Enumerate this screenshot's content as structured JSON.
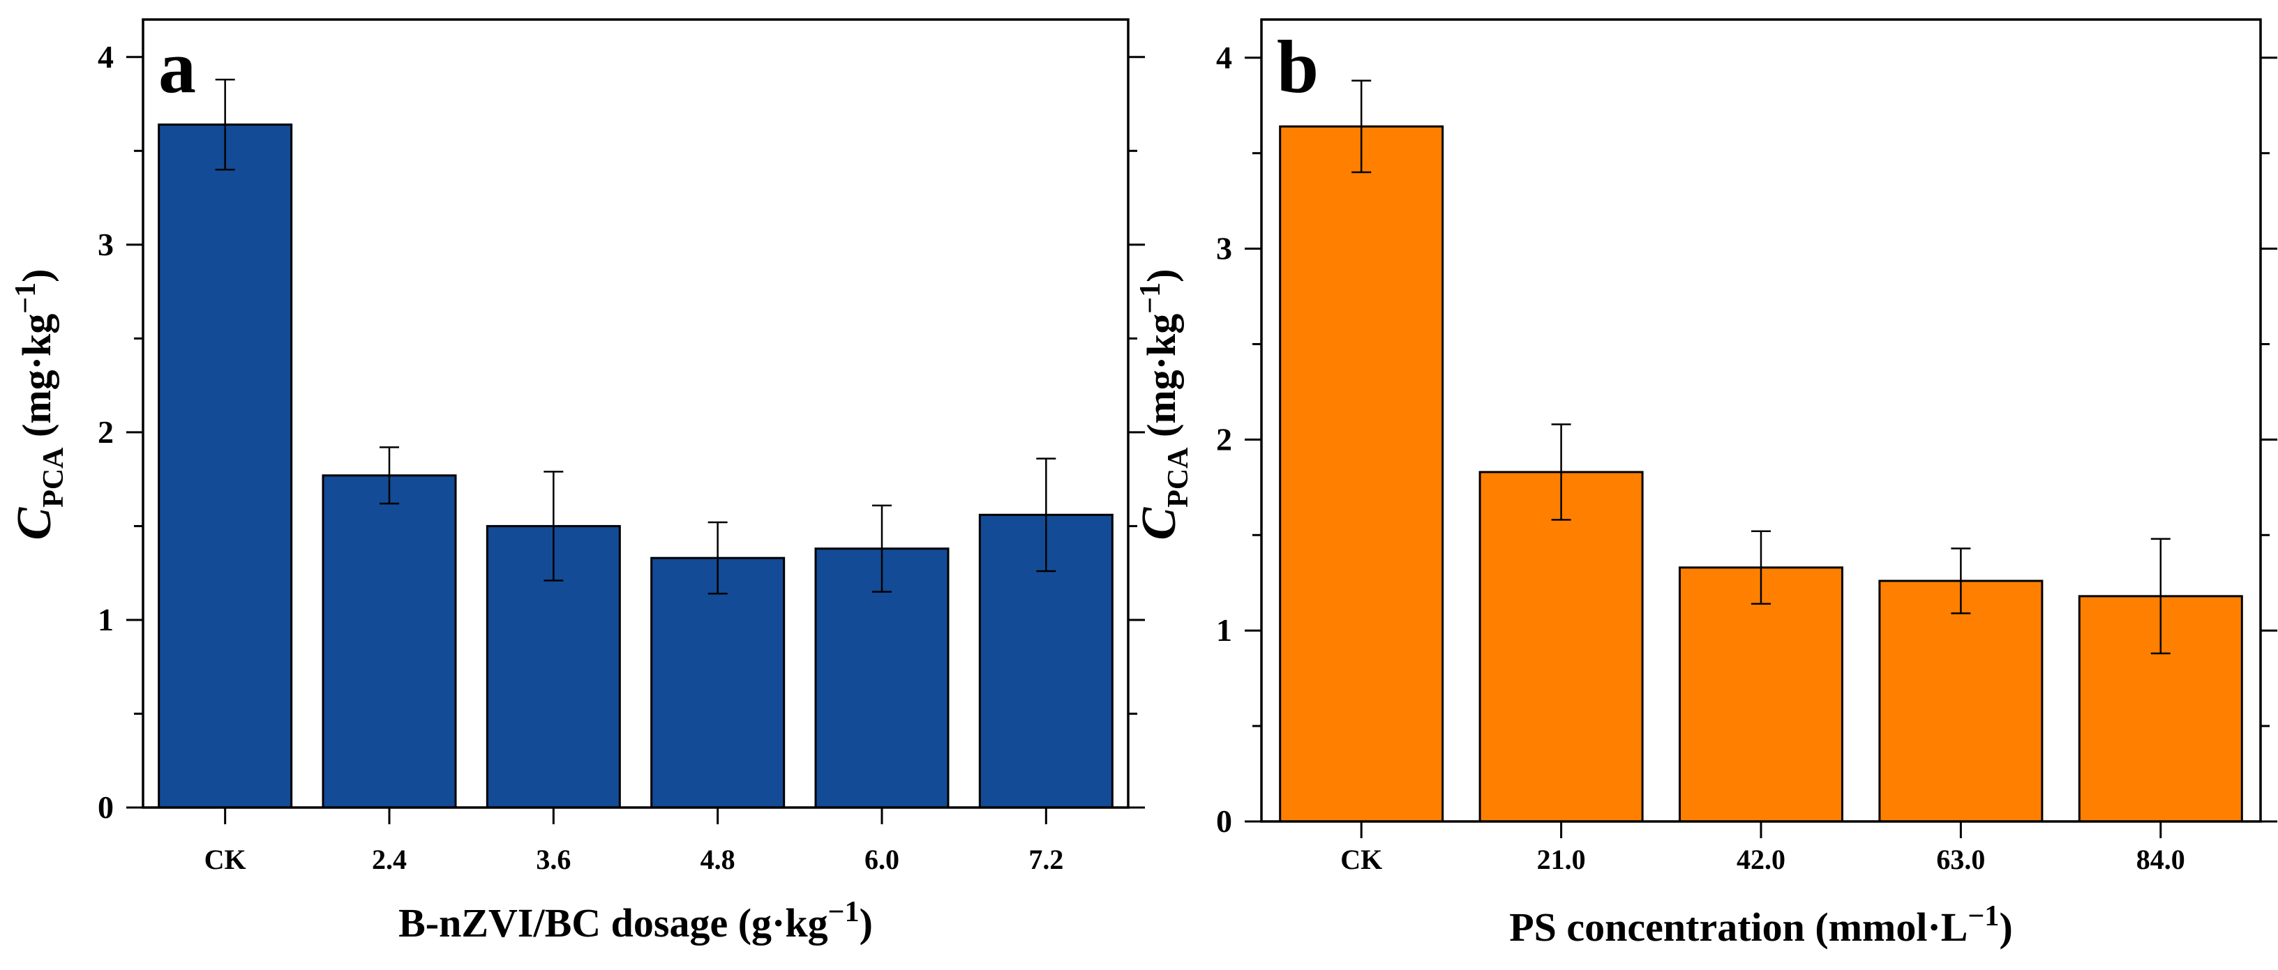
{
  "chart_data": [
    {
      "type": "bar",
      "panel_label": "a",
      "title": "",
      "ylabel_main": "C",
      "ylabel_sub": "PCA",
      "ylabel_unit": "(mg·kg",
      "ylabel_unit_sup": "−1",
      "ylabel_unit_close": ")",
      "xlabel": "B-nZVI/BC dosage (g·kg",
      "xlabel_sup": "−1",
      "xlabel_close": ")",
      "categories": [
        "CK",
        "2.4",
        "3.6",
        "4.8",
        "6.0",
        "7.2"
      ],
      "values": [
        3.64,
        1.77,
        1.5,
        1.33,
        1.38,
        1.56
      ],
      "errors": [
        0.24,
        0.15,
        0.29,
        0.19,
        0.23,
        0.3
      ],
      "ylim": [
        0,
        4.2
      ],
      "yticks": [
        0,
        1,
        2,
        3,
        4
      ],
      "color": "#134b96"
    },
    {
      "type": "bar",
      "panel_label": "b",
      "title": "",
      "ylabel_main": "C",
      "ylabel_sub": "PCA",
      "ylabel_unit": "(mg·kg",
      "ylabel_unit_sup": "−1",
      "ylabel_unit_close": ")",
      "xlabel": "PS concentration (mmol·L",
      "xlabel_sup": "−1",
      "xlabel_close": ")",
      "categories": [
        "CK",
        "21.0",
        "42.0",
        "63.0",
        "84.0"
      ],
      "values": [
        3.64,
        1.83,
        1.33,
        1.26,
        1.18
      ],
      "errors": [
        0.24,
        0.25,
        0.19,
        0.17,
        0.3
      ],
      "ylim": [
        0,
        4.2
      ],
      "yticks": [
        0,
        1,
        2,
        3,
        4
      ],
      "color": "#ff8000"
    }
  ]
}
